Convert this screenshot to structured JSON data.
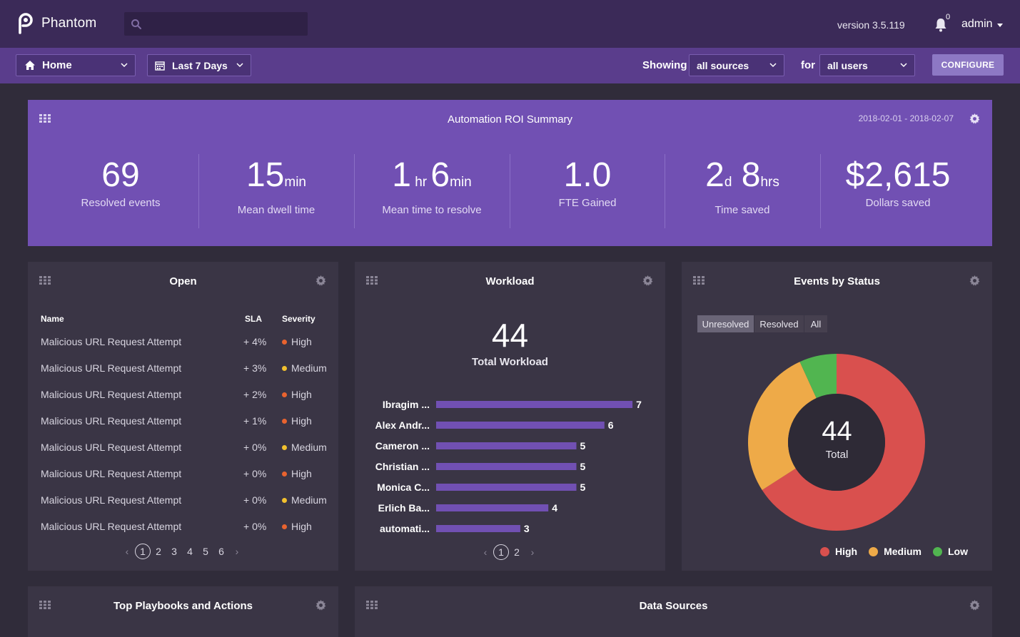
{
  "app": {
    "name": "Phantom",
    "version": "version 3.5.119",
    "notifications": "0",
    "user": "admin"
  },
  "search": {
    "placeholder": ""
  },
  "toolbar": {
    "home": "Home",
    "range": "Last 7 Days",
    "showing_label": "Showing",
    "source": "all sources",
    "for_label": "for",
    "users": "all users",
    "configure": "CONFIGURE"
  },
  "roi": {
    "title": "Automation ROI Summary",
    "range": "2018-02-01 - 2018-02-07",
    "metrics": [
      {
        "parts": [
          "69"
        ],
        "units": [],
        "label": "Resolved events"
      },
      {
        "parts": [
          "15"
        ],
        "units": [
          "min"
        ],
        "label": "Mean dwell time"
      },
      {
        "parts": [
          "1",
          "6"
        ],
        "units": [
          "hr",
          "min"
        ],
        "label": "Mean time to resolve"
      },
      {
        "parts": [
          "1.0"
        ],
        "units": [],
        "label": "FTE Gained"
      },
      {
        "parts": [
          "2",
          "8"
        ],
        "units": [
          "d",
          "hrs"
        ],
        "label": "Time saved"
      },
      {
        "parts": [
          "$2,615"
        ],
        "units": [],
        "label": "Dollars saved"
      }
    ]
  },
  "open": {
    "title": "Open",
    "headers": {
      "name": "Name",
      "sla": "SLA",
      "severity": "Severity"
    },
    "rows": [
      {
        "name": "Malicious URL Request Attempt",
        "sla": "+ 4%",
        "severity": "High"
      },
      {
        "name": "Malicious URL Request Attempt",
        "sla": "+ 3%",
        "severity": "Medium"
      },
      {
        "name": "Malicious URL Request Attempt",
        "sla": "+ 2%",
        "severity": "High"
      },
      {
        "name": "Malicious URL Request Attempt",
        "sla": "+ 1%",
        "severity": "High"
      },
      {
        "name": "Malicious URL Request Attempt",
        "sla": "+ 0%",
        "severity": "Medium"
      },
      {
        "name": "Malicious URL Request Attempt",
        "sla": "+ 0%",
        "severity": "High"
      },
      {
        "name": "Malicious URL Request Attempt",
        "sla": "+ 0%",
        "severity": "Medium"
      },
      {
        "name": "Malicious URL Request Attempt",
        "sla": "+ 0%",
        "severity": "High"
      }
    ],
    "pages": [
      "1",
      "2",
      "3",
      "4",
      "5",
      "6"
    ],
    "current_page": "1"
  },
  "workload": {
    "title": "Workload",
    "total": "44",
    "total_label": "Total Workload",
    "pages": [
      "1",
      "2"
    ],
    "current_page": "1"
  },
  "status": {
    "title": "Events by Status",
    "tabs": [
      "Unresolved",
      "Resolved",
      "All"
    ],
    "active_tab": "Unresolved",
    "total": "44",
    "total_label": "Total"
  },
  "bottom": {
    "playbooks_title": "Top Playbooks and Actions",
    "sources_title": "Data Sources"
  },
  "colors": {
    "high": "#e8632f",
    "medium": "#f2c12e",
    "bar": "#7150b3",
    "donut_high": "#d9504e",
    "donut_medium": "#eeaa48",
    "donut_low": "#51b550"
  },
  "chart_data": [
    {
      "type": "bar",
      "orientation": "horizontal",
      "categories": [
        "Ibragim ...",
        "Alex Andr...",
        "Cameron ...",
        "Christian ...",
        "Monica C...",
        "Erlich Ba...",
        "automati..."
      ],
      "values": [
        7,
        6,
        5,
        5,
        5,
        4,
        3
      ]
    },
    {
      "type": "pie",
      "donut": true,
      "series": [
        {
          "name": "High",
          "value": 29
        },
        {
          "name": "Medium",
          "value": 12
        },
        {
          "name": "Low",
          "value": 3
        }
      ]
    }
  ]
}
